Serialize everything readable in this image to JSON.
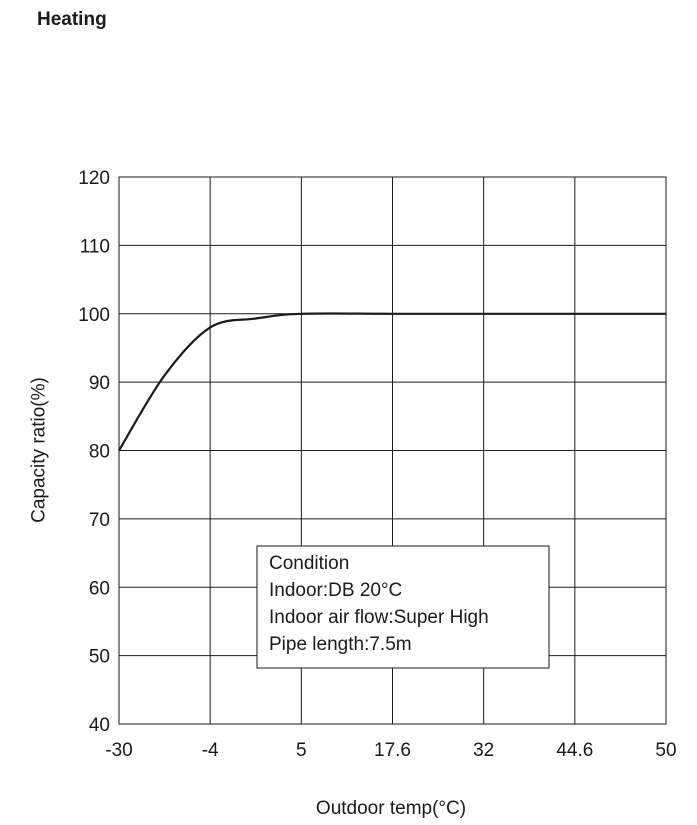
{
  "page": {
    "title": "Heating"
  },
  "chart_data": {
    "type": "line",
    "title": "",
    "xlabel": "Outdoor temp(°C)",
    "ylabel": "Capacity ratio(%)",
    "x_ticks": [
      "-30",
      "-4",
      "5",
      "17.6",
      "32",
      "44.6",
      "50"
    ],
    "y_ticks": [
      40,
      50,
      60,
      70,
      80,
      90,
      100,
      110,
      120
    ],
    "ylim": [
      40,
      120
    ],
    "grid": true,
    "series": [
      {
        "x_tick_index": [
          0,
          0.5,
          1,
          1.5,
          2,
          3,
          4,
          5,
          6
        ],
        "y": [
          80,
          91,
          98,
          99.3,
          100,
          100,
          100,
          100,
          100
        ]
      }
    ],
    "annotation": {
      "lines": [
        "Condition",
        "Indoor:DB 20°C",
        "Indoor air flow:Super High",
        "Pipe length:7.5m"
      ]
    }
  }
}
